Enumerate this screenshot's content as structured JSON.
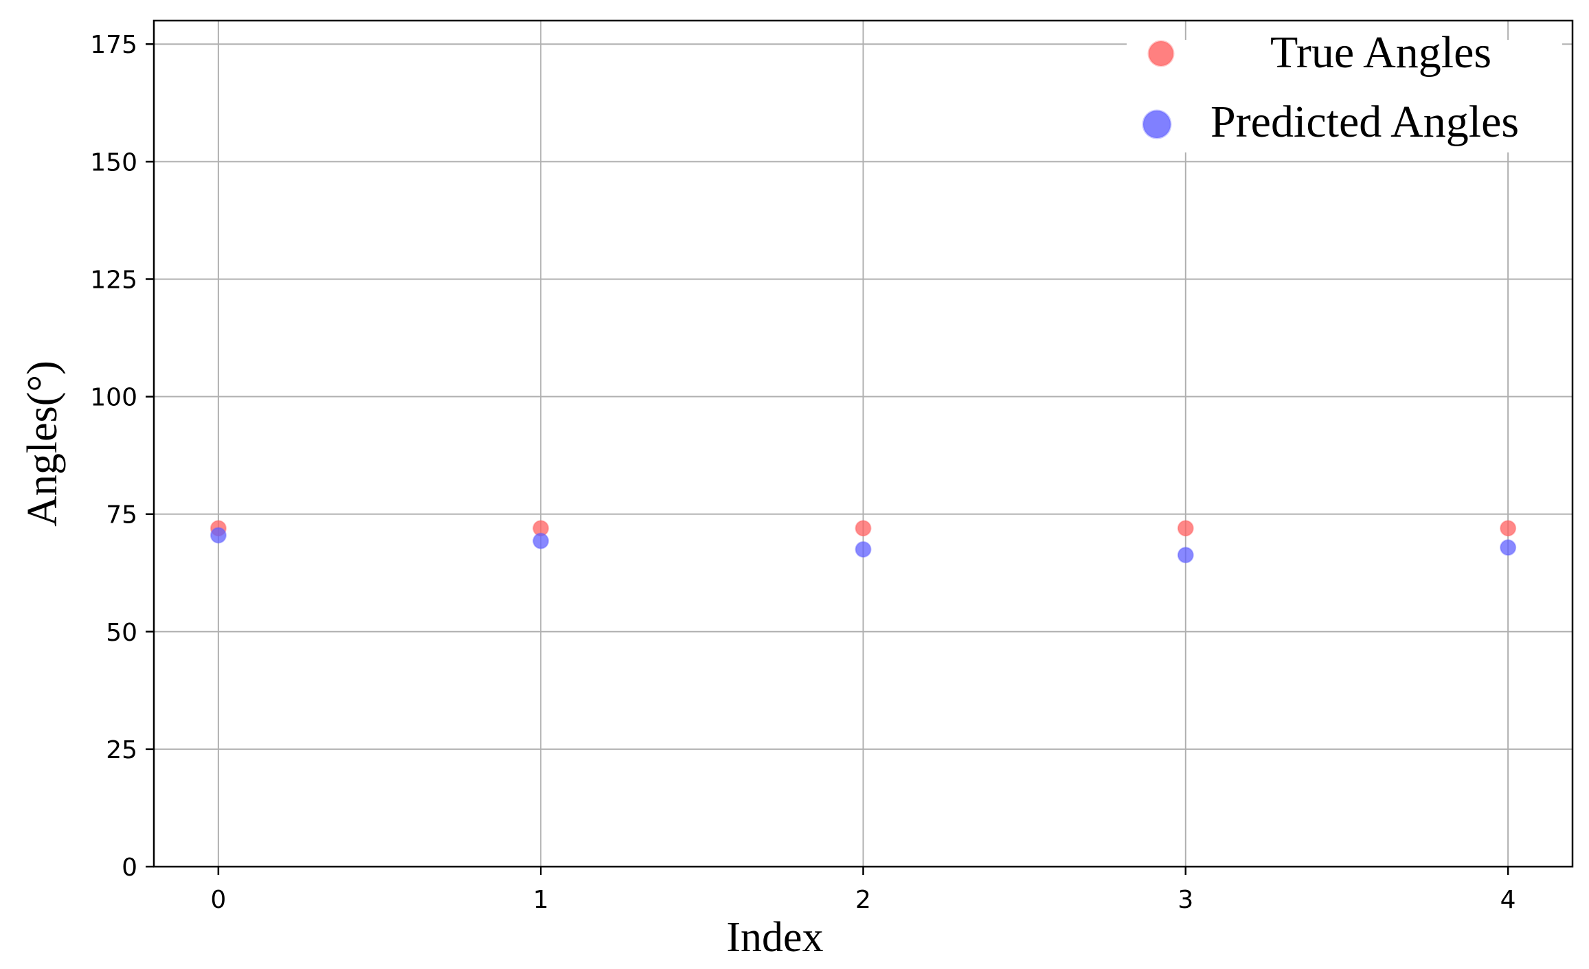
{
  "chart_data": {
    "type": "scatter",
    "title": "",
    "xlabel": "Index",
    "ylabel": "Angles(°)",
    "x": [
      0,
      1,
      2,
      3,
      4
    ],
    "xticks": [
      0,
      1,
      2,
      3,
      4
    ],
    "yticks": [
      0,
      25,
      50,
      75,
      100,
      125,
      150,
      175
    ],
    "xlim": [
      -0.2,
      4.2
    ],
    "ylim": [
      0,
      180
    ],
    "grid": true,
    "legend_position": "top-right",
    "series": [
      {
        "name": "True Angles",
        "color": "#ff6060",
        "values": [
          72,
          72,
          72,
          72,
          72
        ]
      },
      {
        "name": "Predicted Angles",
        "color": "#6060ff",
        "values": [
          70.5,
          69.3,
          67.5,
          66.3,
          67.9
        ]
      }
    ]
  }
}
